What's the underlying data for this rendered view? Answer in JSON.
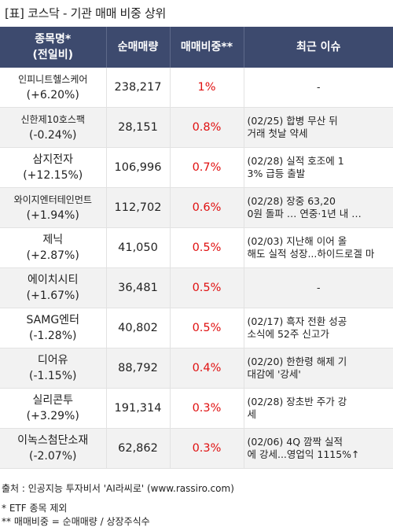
{
  "title": "[표] 코스닥 - 기관 매매 비중 상위",
  "headers": {
    "name_line1": "종목명*",
    "name_line2": "(전일비)",
    "volume": "순매매량",
    "ratio": "매매비중**",
    "issue": "최근 이슈"
  },
  "rows": [
    {
      "name": "인피니트헬스케어",
      "change": "(+6.20%)",
      "volume": "238,217",
      "ratio": "1%",
      "issue_line1": "-",
      "issue_line2": ""
    },
    {
      "name": "신한제10호스팩",
      "change": "(-0.24%)",
      "volume": "28,151",
      "ratio": "0.8%",
      "issue_line1": "(02/25) 합병 무산 뒤",
      "issue_line2": "거래 첫날 약세"
    },
    {
      "name": "삼지전자",
      "change": "(+12.15%)",
      "volume": "106,996",
      "ratio": "0.7%",
      "issue_line1": "(02/28) 실적 호조에 1",
      "issue_line2": "3% 급등 출발"
    },
    {
      "name": "와이지엔터테인먼트",
      "change": "(+1.94%)",
      "volume": "112,702",
      "ratio": "0.6%",
      "issue_line1": "(02/28) 장중 63,20",
      "issue_line2": "0원 돌파 … 연중·1년 내 …"
    },
    {
      "name": "제닉",
      "change": "(+2.87%)",
      "volume": "41,050",
      "ratio": "0.5%",
      "issue_line1": "(02/03) 지난해 이어 올",
      "issue_line2": "해도 실적 성장...하이드로겔 마"
    },
    {
      "name": "에이치시티",
      "change": "(+1.67%)",
      "volume": "36,481",
      "ratio": "0.5%",
      "issue_line1": "-",
      "issue_line2": ""
    },
    {
      "name": "SAMG엔터",
      "change": "(-1.28%)",
      "volume": "40,802",
      "ratio": "0.5%",
      "issue_line1": "(02/17) 흑자 전환 성공",
      "issue_line2": " 소식에 52주 신고가"
    },
    {
      "name": "디어유",
      "change": "(-1.15%)",
      "volume": "88,792",
      "ratio": "0.4%",
      "issue_line1": "(02/20) 한한령 해제 기",
      "issue_line2": "대감에 '강세'"
    },
    {
      "name": "실리콘투",
      "change": "(+3.29%)",
      "volume": "191,314",
      "ratio": "0.3%",
      "issue_line1": "(02/28) 장초반 주가 강",
      "issue_line2": "세"
    },
    {
      "name": "이녹스첨단소재",
      "change": "(-2.07%)",
      "volume": "62,862",
      "ratio": "0.3%",
      "issue_line1": "(02/06) 4Q 깜짝 실적",
      "issue_line2": "에 강세...영업익 1115%↑"
    }
  ],
  "footer": {
    "source": "출처 : 인공지능 투자비서 'AI라씨로' (www.rassiro.com)",
    "note1": "* ETF 종목 제외",
    "note2": "** 매매비중 = 순매매량 / 상장주식수"
  },
  "colors": {
    "header_bg": "#3d4a6e",
    "ratio_text": "#e01010",
    "alt_row": "#f2f2f2"
  }
}
